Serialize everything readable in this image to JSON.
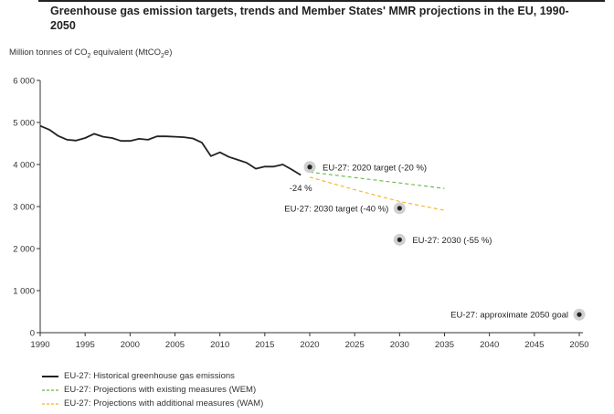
{
  "title": "Greenhouse gas emission targets, trends and Member States' MMR projections in the EU, 1990-2050",
  "unit_label": "Million tonnes of CO2 equivalent (MtCO2e)",
  "chart_data": {
    "type": "line",
    "title": "Greenhouse gas emission targets, trends and Member States' MMR projections in the EU, 1990-2050",
    "ylabel": "Million tonnes of CO2 equivalent (MtCO2e)",
    "xlim": [
      1990,
      2050
    ],
    "ylim": [
      0,
      6000
    ],
    "x_ticks": [
      1990,
      1995,
      2000,
      2005,
      2010,
      2015,
      2020,
      2025,
      2030,
      2035,
      2040,
      2045,
      2050
    ],
    "y_ticks": [
      0,
      1000,
      2000,
      3000,
      4000,
      5000,
      6000
    ],
    "y_tick_labels": [
      "0",
      "1 000",
      "2 000",
      "3 000",
      "4 000",
      "5 000",
      "6 000"
    ],
    "grid": false,
    "series": [
      {
        "name": "EU-27: Historical greenhouse gas emissions",
        "color": "#222222",
        "style": "solid",
        "x": [
          1990,
          1991,
          1992,
          1993,
          1994,
          1995,
          1996,
          1997,
          1998,
          1999,
          2000,
          2001,
          2002,
          2003,
          2004,
          2005,
          2006,
          2007,
          2008,
          2009,
          2010,
          2011,
          2012,
          2013,
          2014,
          2015,
          2016,
          2017,
          2018,
          2019
        ],
        "y": [
          4920,
          4830,
          4680,
          4590,
          4570,
          4630,
          4730,
          4660,
          4630,
          4560,
          4560,
          4610,
          4590,
          4670,
          4670,
          4660,
          4650,
          4620,
          4520,
          4200,
          4290,
          4180,
          4110,
          4040,
          3900,
          3950,
          3950,
          4000,
          3880,
          3750
        ]
      },
      {
        "name": "EU-27: Projections with existing measures (WEM)",
        "color": "#66bb44",
        "style": "dashed",
        "x": [
          2020,
          2025,
          2030,
          2035
        ],
        "y": [
          3820,
          3690,
          3560,
          3430
        ]
      },
      {
        "name": "EU-27: Projections with additional measures (WAM)",
        "color": "#f5b21a",
        "style": "dashed",
        "x": [
          2020,
          2025,
          2030,
          2035
        ],
        "y": [
          3700,
          3400,
          3120,
          2910
        ]
      }
    ],
    "points": [
      {
        "x": 2020,
        "y": 3940,
        "label": "EU-27: 2020 target (-20 %)",
        "label_side": "right"
      },
      {
        "x": 2030,
        "y": 2960,
        "label": "EU-27: 2030 target (-40 %)",
        "label_side": "left"
      },
      {
        "x": 2030,
        "y": 2210,
        "label": "EU-27: 2030 (-55 %)",
        "label_side": "right"
      },
      {
        "x": 2050,
        "y": 430,
        "label": "EU-27: approximate 2050 goal",
        "label_side": "left"
      }
    ],
    "annotations": [
      {
        "x": 2019,
        "y": 3450,
        "text": "-24 %"
      }
    ],
    "legend_position": "bottom-left"
  }
}
